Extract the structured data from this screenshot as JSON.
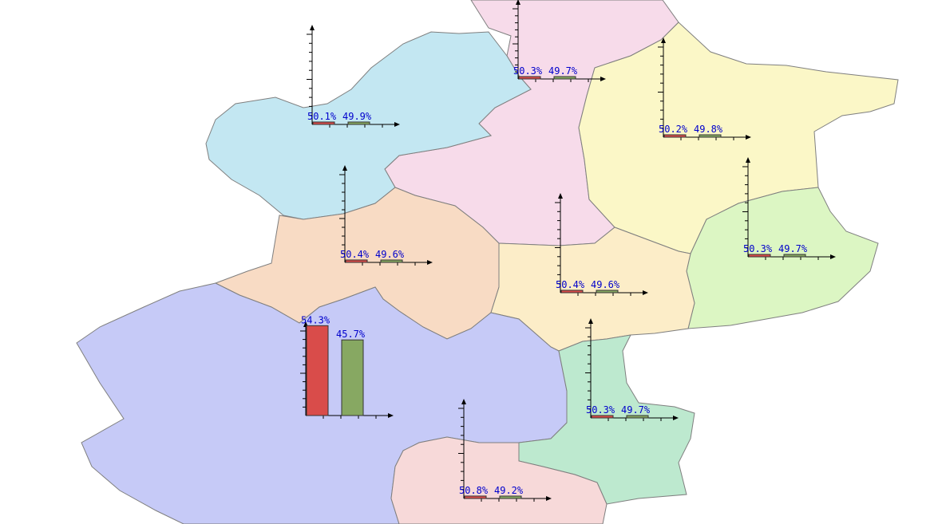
{
  "colors": {
    "male_bar": "#d94c4a",
    "female_bar": "#87a862",
    "label_text": "#0000cc"
  },
  "regions": [
    {
      "id": "northwest",
      "fill": "#c3e7f2"
    },
    {
      "id": "north-center",
      "fill": "#f7dbea"
    },
    {
      "id": "northeast",
      "fill": "#fbf7c7"
    },
    {
      "id": "east",
      "fill": "#dcf6c3"
    },
    {
      "id": "west-center",
      "fill": "#f8dbc4"
    },
    {
      "id": "center",
      "fill": "#fcedc8"
    },
    {
      "id": "southwest",
      "fill": "#c6caf7"
    },
    {
      "id": "southeast",
      "fill": "#bde9cf"
    },
    {
      "id": "south",
      "fill": "#f7d9d9"
    }
  ],
  "chart_data": [
    {
      "type": "bar",
      "region": "northwest",
      "values": [
        50.1,
        49.9
      ],
      "labels": [
        "50.1%",
        "49.9%"
      ]
    },
    {
      "type": "bar",
      "region": "north-center",
      "values": [
        50.3,
        49.7
      ],
      "labels": [
        "50.3%",
        "49.7%"
      ]
    },
    {
      "type": "bar",
      "region": "northeast",
      "values": [
        50.2,
        49.8
      ],
      "labels": [
        "50.2%",
        "49.8%"
      ]
    },
    {
      "type": "bar",
      "region": "west-center",
      "values": [
        50.4,
        49.6
      ],
      "labels": [
        "50.4%",
        "49.6%"
      ]
    },
    {
      "type": "bar",
      "region": "center",
      "values": [
        50.4,
        49.6
      ],
      "labels": [
        "50.4%",
        "49.6%"
      ]
    },
    {
      "type": "bar",
      "region": "east",
      "values": [
        50.3,
        49.7
      ],
      "labels": [
        "50.3%",
        "49.7%"
      ]
    },
    {
      "type": "bar",
      "region": "southwest",
      "values": [
        54.3,
        45.7
      ],
      "labels": [
        "54.3%",
        "45.7%"
      ]
    },
    {
      "type": "bar",
      "region": "southeast",
      "values": [
        50.3,
        49.7
      ],
      "labels": [
        "50.3%",
        "49.7%"
      ]
    },
    {
      "type": "bar",
      "region": "south",
      "values": [
        50.8,
        49.2
      ],
      "labels": [
        "50.8%",
        "49.2%"
      ]
    }
  ]
}
